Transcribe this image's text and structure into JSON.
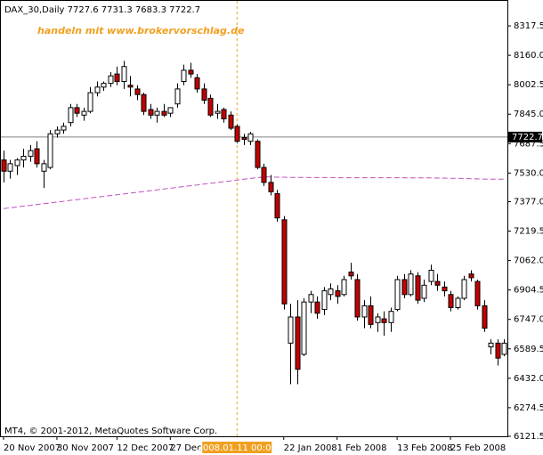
{
  "chart_data": {
    "type": "candlestick",
    "title": "DAX_30,Daily  7727.6 7731.3 7683.3 7722.7",
    "annotation": "handeln mit www.brokervorschlag.de",
    "footer": "MT4, © 2001-2012, MetaQuotes Software Corp.",
    "categories": [
      "20 Nov 2007",
      null,
      null,
      null,
      null,
      null,
      null,
      null,
      "30 Nov 2007",
      null,
      null,
      null,
      null,
      null,
      null,
      null,
      null,
      "12 Dec 2007",
      null,
      null,
      null,
      null,
      null,
      null,
      null,
      "27 Dec 2007",
      null,
      null,
      null,
      null,
      null,
      null,
      null,
      null,
      null,
      "2008.01.11 00:00",
      null,
      null,
      null,
      null,
      null,
      null,
      "22 Jan 2008",
      null,
      null,
      null,
      null,
      null,
      null,
      null,
      "1 Feb 2008",
      null,
      null,
      null,
      null,
      null,
      null,
      null,
      null,
      "13 Feb 2008",
      null,
      null,
      null,
      null,
      null,
      null,
      null,
      "25 Feb 2008",
      null,
      null,
      null,
      null,
      null,
      null,
      null,
      null
    ],
    "highlight_category": 35,
    "open": [
      7600,
      7540,
      7570,
      7600,
      7620,
      7660,
      7540,
      7560,
      7740,
      7760,
      7800,
      7880,
      7840,
      7860,
      7960,
      7990,
      8010,
      8060,
      8020,
      8000,
      7980,
      7950,
      7870,
      7840,
      7860,
      7850,
      7900,
      8020,
      8080,
      8040,
      7980,
      7930,
      7850,
      7870,
      7840,
      7780,
      7720,
      7700,
      7700,
      7560,
      7480,
      7420,
      7280,
      6620,
      6760,
      6560,
      6840,
      6840,
      6800,
      6880,
      6900,
      6880,
      7000,
      6960,
      6760,
      6820,
      6730,
      6750,
      6730,
      6800,
      6960,
      6880,
      6980,
      6860,
      6950,
      6950,
      6920,
      6880,
      6810,
      6860,
      6990,
      6950,
      6820,
      6600,
      6620,
      6560
    ],
    "high": [
      7650,
      7600,
      7610,
      7660,
      7680,
      7700,
      7600,
      7760,
      7780,
      7800,
      7900,
      7900,
      7880,
      7990,
      8020,
      8020,
      8070,
      8100,
      8130,
      8050,
      8000,
      7960,
      7900,
      7880,
      7900,
      7880,
      8010,
      8110,
      8120,
      8060,
      8010,
      7950,
      7900,
      7880,
      7860,
      7790,
      7740,
      7750,
      7710,
      7580,
      7520,
      7440,
      7300,
      6830,
      6850,
      6860,
      6900,
      6870,
      6920,
      6940,
      6930,
      6980,
      7050,
      6990,
      6850,
      6870,
      6780,
      6790,
      6810,
      6980,
      6990,
      7010,
      7000,
      6960,
      7040,
      6990,
      6950,
      6900,
      6870,
      6980,
      7010,
      6960,
      6850,
      6640,
      6640,
      6640
    ],
    "low": [
      7480,
      7500,
      7520,
      7560,
      7590,
      7560,
      7450,
      7550,
      7720,
      7740,
      7780,
      7830,
      7810,
      7850,
      7940,
      7970,
      7990,
      8000,
      7980,
      7940,
      7920,
      7840,
      7820,
      7800,
      7830,
      7830,
      7880,
      8000,
      8040,
      7960,
      7900,
      7830,
      7820,
      7800,
      7760,
      7690,
      7680,
      7680,
      7550,
      7460,
      7410,
      7270,
      6800,
      6400,
      6400,
      6550,
      6780,
      6750,
      6770,
      6850,
      6830,
      6870,
      6960,
      6740,
      6700,
      6700,
      6680,
      6660,
      6680,
      6790,
      6860,
      6870,
      6830,
      6840,
      6930,
      6900,
      6870,
      6790,
      6800,
      6850,
      6950,
      6800,
      6680,
      6560,
      6500,
      6550
    ],
    "close": [
      7540,
      7580,
      7600,
      7620,
      7650,
      7580,
      7580,
      7740,
      7760,
      7780,
      7880,
      7850,
      7860,
      7960,
      7990,
      8010,
      8050,
      8020,
      8100,
      7990,
      7950,
      7860,
      7840,
      7860,
      7840,
      7880,
      7980,
      8080,
      8060,
      7980,
      7920,
      7840,
      7860,
      7820,
      7770,
      7700,
      7710,
      7740,
      7560,
      7480,
      7430,
      7290,
      6830,
      6760,
      6480,
      6840,
      6880,
      6780,
      6900,
      6910,
      6870,
      6960,
      6980,
      6760,
      6820,
      6720,
      6760,
      6730,
      6790,
      6960,
      6880,
      6990,
      6850,
      6930,
      7010,
      6930,
      6900,
      6810,
      6860,
      6960,
      6970,
      6820,
      6700,
      6620,
      6540,
      6620
    ],
    "up_color": "#ffffff",
    "down_color": "#c40000",
    "moving_average": {
      "color": "#c050c0",
      "values": [
        7340,
        7344,
        7349,
        7353,
        7357,
        7362,
        7366,
        7370,
        7375,
        7379,
        7384,
        7388,
        7392,
        7397,
        7401,
        7405,
        7410,
        7414,
        7418,
        7423,
        7427,
        7431,
        7436,
        7440,
        7445,
        7449,
        7453,
        7458,
        7462,
        7466,
        7471,
        7475,
        7479,
        7484,
        7488,
        7492,
        7497,
        7501,
        7505,
        7510,
        7509,
        7508,
        7508,
        7507,
        7507,
        7507,
        7506,
        7506,
        7506,
        7506,
        7505,
        7505,
        7505,
        7505,
        7505,
        7505,
        7505,
        7505,
        7505,
        7505,
        7505,
        7504,
        7504,
        7504,
        7504,
        7503,
        7503,
        7502,
        7502,
        7501,
        7500,
        7499,
        7498,
        7497,
        7497,
        7497
      ]
    },
    "current_price": 7722.7,
    "ylim": [
      6121.5,
      8456
    ],
    "yticks": [
      8317.5,
      {
        "value": 8160,
        "label": "8160.0"
      },
      8002.5,
      {
        "value": 7845,
        "label": "7845.0"
      },
      7687.5,
      {
        "value": 7530,
        "label": "7530.0"
      },
      {
        "value": 7377,
        "label": "7377.0"
      },
      7219.5,
      {
        "value": 7062,
        "label": "7062.0"
      },
      6904.5,
      {
        "value": 6747,
        "label": "6747.0"
      },
      6589.5,
      {
        "value": 6432,
        "label": "6432.0"
      },
      6274.5,
      6121.5
    ]
  }
}
